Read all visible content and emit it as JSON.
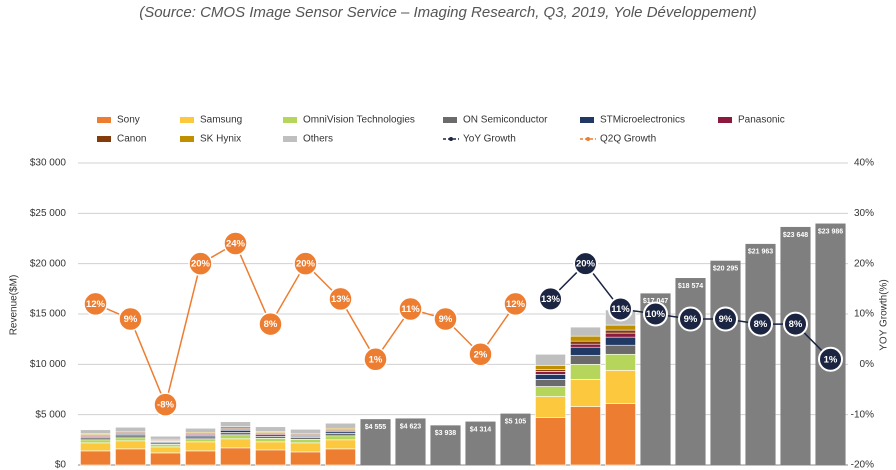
{
  "chart_data": {
    "type": "bar-line",
    "title": "(Source: CMOS Image Sensor Service – Imaging Research, Q3, 2019, Yole Développement)",
    "y_label": "Revenue($M)",
    "y2_label": "YOY Growth(%)",
    "ylim": [
      0,
      30000
    ],
    "yticks": [
      {
        "value": 0,
        "label": "$0"
      },
      {
        "value": 5000,
        "label": "$5 000"
      },
      {
        "value": 10000,
        "label": "$10 000"
      },
      {
        "value": 15000,
        "label": "$15 000"
      },
      {
        "value": 20000,
        "label": "$20 000"
      },
      {
        "value": 25000,
        "label": "$25 000"
      },
      {
        "value": 30000,
        "label": "$30 000"
      }
    ],
    "y2lim": [
      -20,
      40
    ],
    "y2ticks": [
      {
        "value": -20,
        "label": "-20%"
      },
      {
        "value": -10,
        "label": "-10%"
      },
      {
        "value": 0,
        "label": "0%"
      },
      {
        "value": 10,
        "label": "10%"
      },
      {
        "value": 20,
        "label": "20%"
      },
      {
        "value": 30,
        "label": "30%"
      },
      {
        "value": 40,
        "label": "40%"
      }
    ],
    "grid": true,
    "series": [
      {
        "name": "Sony",
        "color": "#ed7d31",
        "values": [
          1400,
          1600,
          1200,
          1400,
          1700,
          1500,
          1300,
          1600,
          null,
          null,
          null,
          null,
          null,
          4700,
          5800,
          6100,
          null,
          null,
          null,
          null,
          null,
          null
        ]
      },
      {
        "name": "Samsung",
        "color": "#fbc83e",
        "values": [
          800,
          800,
          600,
          900,
          900,
          800,
          900,
          900,
          null,
          null,
          null,
          null,
          null,
          2100,
          2700,
          3300,
          null,
          null,
          null,
          null,
          null,
          null
        ]
      },
      {
        "name": "OmniVision Technologies",
        "color": "#b5d55b",
        "values": [
          300,
          300,
          250,
          300,
          400,
          350,
          350,
          400,
          null,
          null,
          null,
          null,
          null,
          1000,
          1500,
          1600,
          null,
          null,
          null,
          null,
          null,
          null
        ]
      },
      {
        "name": "ON Semiconductor",
        "color": "#6b6b6b",
        "values": [
          200,
          200,
          150,
          200,
          250,
          200,
          200,
          250,
          null,
          null,
          null,
          null,
          null,
          700,
          900,
          900,
          null,
          null,
          null,
          null,
          null,
          null
        ]
      },
      {
        "name": "STMicroelectronics",
        "color": "#1f3864",
        "values": [
          100,
          150,
          100,
          150,
          200,
          150,
          100,
          150,
          null,
          null,
          null,
          null,
          null,
          500,
          800,
          800,
          null,
          null,
          null,
          null,
          null,
          null
        ]
      },
      {
        "name": "Panasonic",
        "color": "#8b1a3e",
        "values": [
          100,
          100,
          80,
          100,
          100,
          100,
          100,
          100,
          null,
          null,
          null,
          null,
          null,
          300,
          300,
          400,
          null,
          null,
          null,
          null,
          null,
          null
        ]
      },
      {
        "name": "Canon",
        "color": "#843c0c",
        "values": [
          100,
          100,
          80,
          100,
          100,
          100,
          100,
          100,
          null,
          null,
          null,
          null,
          null,
          200,
          300,
          300,
          null,
          null,
          null,
          null,
          null,
          null
        ]
      },
      {
        "name": "SK Hynix",
        "color": "#bf8f00",
        "values": [
          100,
          100,
          100,
          100,
          150,
          100,
          100,
          150,
          null,
          null,
          null,
          null,
          null,
          400,
          500,
          500,
          null,
          null,
          null,
          null,
          null,
          null
        ]
      },
      {
        "name": "Others",
        "color": "#bfbfbf",
        "values": [
          400,
          400,
          300,
          400,
          500,
          500,
          400,
          500,
          null,
          null,
          null,
          null,
          null,
          1100,
          900,
          1500,
          null,
          null,
          null,
          null,
          null,
          null
        ]
      },
      {
        "name": "YoY Growth",
        "color": "#1b2440",
        "axis": "y2",
        "type": "line",
        "values": [
          null,
          null,
          null,
          null,
          null,
          null,
          null,
          null,
          null,
          null,
          null,
          null,
          null,
          13,
          20,
          11,
          10,
          9,
          9,
          8,
          8,
          1
        ],
        "value_labels": [
          null,
          null,
          null,
          null,
          null,
          null,
          null,
          null,
          null,
          null,
          null,
          null,
          null,
          "13%",
          "20%",
          "11%",
          "10%",
          "9%",
          "9%",
          "8%",
          "8%",
          "1%"
        ]
      },
      {
        "name": "Q2Q Growth",
        "color": "#ed7d31",
        "axis": "y2",
        "type": "line",
        "values": [
          12,
          9,
          -8,
          20,
          24,
          8,
          20,
          13,
          1,
          11,
          9,
          2,
          12,
          null,
          null,
          null,
          null,
          null,
          null,
          null,
          null,
          null
        ],
        "value_labels": [
          "12%",
          "9%",
          "-8%",
          "20%",
          "24%",
          "8%",
          "20%",
          "13%",
          "1%",
          "11%",
          "9%",
          "2%",
          "12%",
          null,
          null,
          null,
          null,
          null,
          null,
          null,
          null,
          null
        ]
      }
    ],
    "totals": {
      "color": "#7f7f7f",
      "values": [
        null,
        null,
        null,
        null,
        null,
        null,
        null,
        null,
        4555,
        4623,
        3938,
        4314,
        5105,
        null,
        null,
        null,
        17047,
        18574,
        20295,
        21963,
        23648,
        23986
      ],
      "value_labels": [
        null,
        null,
        null,
        null,
        null,
        null,
        null,
        null,
        "$4 555",
        "$4 623",
        "$3 938",
        "$4 314",
        "$5 105",
        null,
        null,
        null,
        "$17 047",
        "$18 574",
        "$20 295",
        "$21 963",
        "$23 648",
        "$23 986"
      ]
    }
  }
}
